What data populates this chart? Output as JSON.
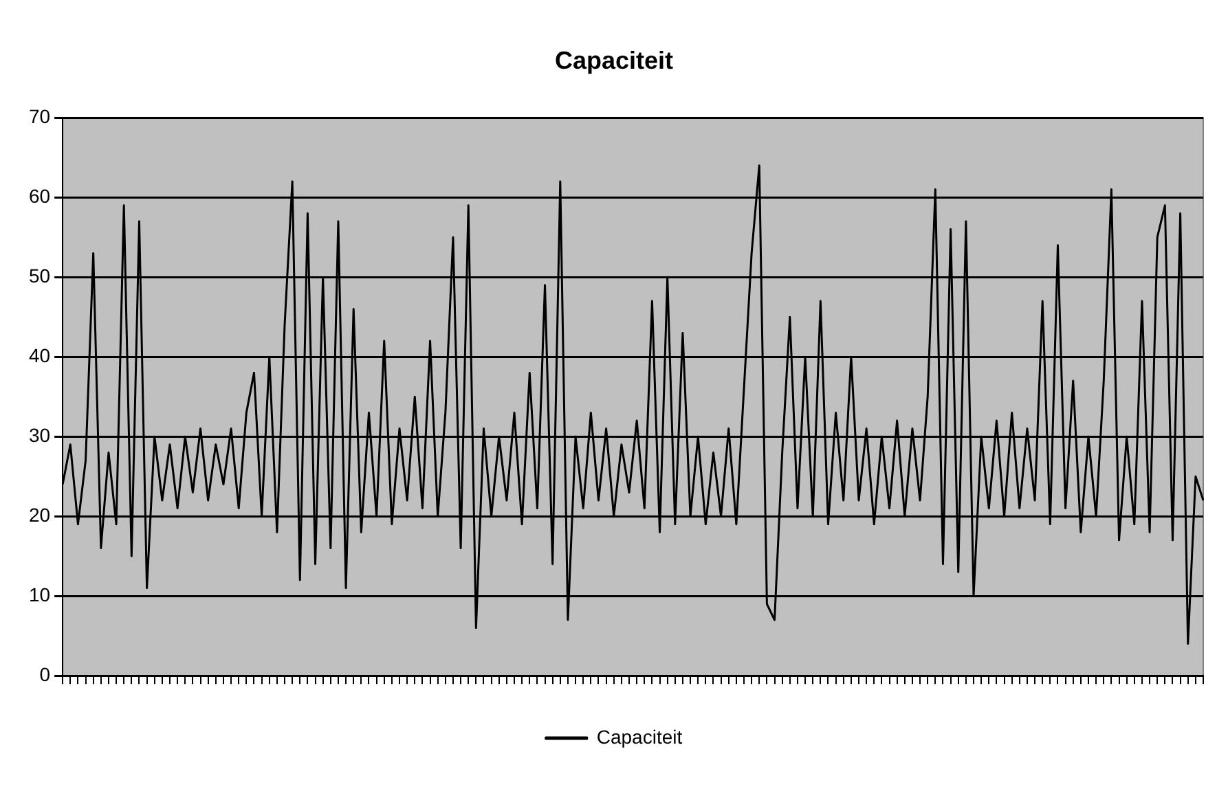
{
  "chart_data": {
    "type": "line",
    "title": "Capaciteit",
    "categories": [
      null,
      null,
      null,
      null,
      null,
      null,
      null,
      null,
      null,
      null,
      null,
      null,
      null,
      null,
      null,
      null,
      null,
      null,
      null,
      null,
      null,
      null,
      null,
      null,
      null,
      null,
      null,
      null,
      null,
      null,
      null,
      null,
      null,
      null,
      null,
      null,
      null,
      null,
      null,
      null,
      null,
      null,
      null,
      null,
      null,
      null,
      null,
      null,
      null,
      null,
      null,
      null,
      null,
      null,
      null,
      null,
      null,
      null,
      null,
      null,
      null,
      null,
      null,
      null,
      null,
      null,
      null,
      null,
      null,
      null,
      null,
      null,
      null,
      null,
      null,
      null,
      null,
      null,
      null,
      null,
      null,
      null,
      null,
      null,
      null,
      null,
      null,
      null,
      null,
      null,
      null,
      null,
      null,
      null,
      null,
      null,
      null,
      null,
      null,
      null,
      null,
      null,
      null,
      null,
      null,
      null,
      null,
      null,
      null,
      null,
      null,
      null,
      null,
      null,
      null,
      null,
      null,
      null,
      null,
      null,
      null,
      null,
      null,
      null,
      null,
      null,
      null,
      null,
      null,
      null,
      null,
      null,
      null,
      null,
      null,
      null,
      null,
      null,
      null,
      null,
      null,
      null,
      null,
      null,
      null,
      null,
      null,
      null,
      null,
      null
    ],
    "series": [
      {
        "name": "Capaciteit",
        "color": "#000000",
        "values": [
          24,
          29,
          19,
          27,
          53,
          16,
          28,
          19,
          59,
          15,
          57,
          11,
          30,
          22,
          29,
          21,
          30,
          23,
          31,
          22,
          29,
          24,
          31,
          21,
          33,
          38,
          20,
          40,
          18,
          44,
          62,
          12,
          58,
          14,
          50,
          16,
          57,
          11,
          46,
          18,
          33,
          20,
          42,
          19,
          31,
          22,
          35,
          21,
          42,
          20,
          33,
          55,
          16,
          59,
          6,
          31,
          20,
          30,
          22,
          33,
          19,
          38,
          21,
          49,
          14,
          62,
          7,
          30,
          21,
          33,
          22,
          31,
          20,
          29,
          23,
          32,
          21,
          47,
          18,
          50,
          19,
          43,
          20,
          30,
          19,
          28,
          20,
          31,
          19,
          36,
          53,
          64,
          9,
          7,
          28,
          45,
          21,
          40,
          20,
          47,
          19,
          33,
          22,
          40,
          22,
          31,
          19,
          30,
          21,
          32,
          20,
          31,
          22,
          35,
          61,
          14,
          56,
          13,
          57,
          10,
          30,
          21,
          32,
          20,
          33,
          21,
          31,
          22,
          47,
          19,
          54,
          21,
          37,
          18,
          30,
          20,
          37,
          61,
          17,
          30,
          19,
          47,
          18,
          55,
          59,
          17,
          58,
          4,
          25,
          22
        ]
      }
    ],
    "ylim": [
      0,
      70
    ],
    "yticks": [
      0,
      10,
      20,
      30,
      40,
      50,
      60,
      70
    ],
    "grid": "y",
    "legend": "bottom",
    "marker": "none",
    "line_style": "solid"
  }
}
